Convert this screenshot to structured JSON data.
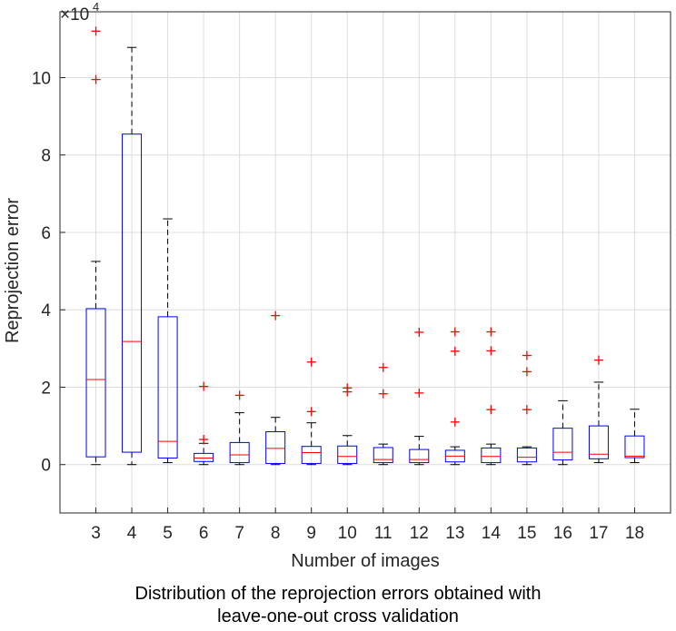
{
  "chart_data": {
    "type": "box",
    "xlabel": "Number of images",
    "ylabel": "Reprojection error",
    "y_exponent_label": "×10",
    "y_exponent": "4",
    "categories": [
      "3",
      "4",
      "5",
      "6",
      "7",
      "8",
      "9",
      "10",
      "11",
      "12",
      "13",
      "14",
      "15",
      "16",
      "17",
      "18"
    ],
    "yticks": [
      0,
      20000,
      40000,
      60000,
      80000,
      100000
    ],
    "ytick_labels": [
      "0",
      "2",
      "4",
      "6",
      "8",
      "10"
    ],
    "ylim": [
      -12500,
      117000
    ],
    "grid": true,
    "boxes": [
      {
        "category": "3",
        "whisker_low": 0,
        "q1": 2000,
        "median": 22000,
        "q3": 40300,
        "whisker_high": 52500,
        "outliers": [
          99500,
          112000
        ]
      },
      {
        "category": "4",
        "whisker_low": 0,
        "q1": 3200,
        "median": 31800,
        "q3": 85400,
        "whisker_high": 107800,
        "outliers": []
      },
      {
        "category": "5",
        "whisker_low": 500,
        "q1": 1700,
        "median": 6000,
        "q3": 38200,
        "whisker_high": 63500,
        "outliers": []
      },
      {
        "category": "6",
        "whisker_low": 0,
        "q1": 800,
        "median": 1700,
        "q3": 2900,
        "whisker_high": 5500,
        "outliers": [
          6500,
          20200
        ]
      },
      {
        "category": "7",
        "whisker_low": 0,
        "q1": 500,
        "median": 2500,
        "q3": 5700,
        "whisker_high": 13400,
        "outliers": [
          17900
        ]
      },
      {
        "category": "8",
        "whisker_low": 0,
        "q1": 300,
        "median": 4200,
        "q3": 8500,
        "whisker_high": 12200,
        "outliers": [
          38500
        ]
      },
      {
        "category": "9",
        "whisker_low": 0,
        "q1": 300,
        "median": 3100,
        "q3": 4700,
        "whisker_high": 10800,
        "outliers": [
          13700,
          26500
        ]
      },
      {
        "category": "10",
        "whisker_low": 0,
        "q1": 300,
        "median": 2100,
        "q3": 4800,
        "whisker_high": 7500,
        "outliers": [
          18800,
          19800
        ]
      },
      {
        "category": "11",
        "whisker_low": 0,
        "q1": 500,
        "median": 1300,
        "q3": 4400,
        "whisker_high": 5300,
        "outliers": [
          18300,
          25100
        ]
      },
      {
        "category": "12",
        "whisker_low": 0,
        "q1": 500,
        "median": 1300,
        "q3": 3900,
        "whisker_high": 7300,
        "outliers": [
          18500,
          34200
        ]
      },
      {
        "category": "13",
        "whisker_low": 0,
        "q1": 700,
        "median": 2200,
        "q3": 3700,
        "whisker_high": 4600,
        "outliers": [
          11000,
          29300,
          34300
        ]
      },
      {
        "category": "14",
        "whisker_low": 0,
        "q1": 500,
        "median": 2100,
        "q3": 4300,
        "whisker_high": 5300,
        "outliers": [
          14200,
          29400,
          34300
        ]
      },
      {
        "category": "15",
        "whisker_low": 0,
        "q1": 700,
        "median": 1900,
        "q3": 4300,
        "whisker_high": 4600,
        "outliers": [
          14200,
          24000,
          28200
        ]
      },
      {
        "category": "16",
        "whisker_low": 0,
        "q1": 1200,
        "median": 3200,
        "q3": 9400,
        "whisker_high": 16500,
        "outliers": []
      },
      {
        "category": "17",
        "whisker_low": 500,
        "q1": 1500,
        "median": 2700,
        "q3": 10000,
        "whisker_high": 21300,
        "outliers": [
          27000
        ]
      },
      {
        "category": "18",
        "whisker_low": 500,
        "q1": 1800,
        "median": 2200,
        "q3": 7400,
        "whisker_high": 14300,
        "outliers": []
      }
    ],
    "colors": {
      "box": "#0000ff",
      "median": "#ff0000",
      "outlier": "#ff0000",
      "whisker": "#000000",
      "grid": "#dcdcdc",
      "axis": "#262626"
    }
  },
  "caption": {
    "line1": "Distribution of the reprojection errors obtained with",
    "line2": "leave-one-out cross validation"
  }
}
